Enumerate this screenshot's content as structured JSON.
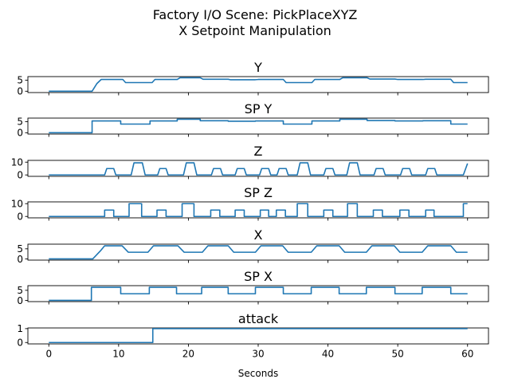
{
  "chart_data": {
    "type": "line",
    "title": [
      "Factory I/O Scene: PickPlaceXYZ",
      "X Setpoint Manipulation"
    ],
    "xlabel": "Seconds",
    "xlim": [
      -3,
      63
    ],
    "xticks": [
      0,
      10,
      20,
      30,
      40,
      50,
      60
    ],
    "line_color": "#1f77b4",
    "grid": false,
    "legend": "none",
    "panels": [
      {
        "title": "Y",
        "ylim": [
          -0.6,
          6.6
        ],
        "yticks": [
          0,
          5
        ],
        "points": [
          [
            0,
            0
          ],
          [
            6.2,
            0
          ],
          [
            6.9,
            3.5
          ],
          [
            7.5,
            5.3
          ],
          [
            10.6,
            5.3
          ],
          [
            11.0,
            3.9
          ],
          [
            14.8,
            3.9
          ],
          [
            15.2,
            5.3
          ],
          [
            18.4,
            5.3
          ],
          [
            18.8,
            6.1
          ],
          [
            21.7,
            6.1
          ],
          [
            22.1,
            5.4
          ],
          [
            25.7,
            5.4
          ],
          [
            26.0,
            5.2
          ],
          [
            29.6,
            5.2
          ],
          [
            30.0,
            5.3
          ],
          [
            33.6,
            5.3
          ],
          [
            34.0,
            3.9
          ],
          [
            37.7,
            3.9
          ],
          [
            38.1,
            5.3
          ],
          [
            41.7,
            5.3
          ],
          [
            42.1,
            6.1
          ],
          [
            45.6,
            6.1
          ],
          [
            46.0,
            5.5
          ],
          [
            49.6,
            5.5
          ],
          [
            50.0,
            5.3
          ],
          [
            53.6,
            5.3
          ],
          [
            54.0,
            5.4
          ],
          [
            57.6,
            5.4
          ],
          [
            58.0,
            3.9
          ],
          [
            60,
            3.9
          ]
        ]
      },
      {
        "title": "SP Y",
        "ylim": [
          -0.6,
          6.6
        ],
        "yticks": [
          0,
          5
        ],
        "points": [
          [
            0,
            0
          ],
          [
            6.2,
            0
          ],
          [
            6.2,
            5.3
          ],
          [
            10.3,
            5.3
          ],
          [
            10.3,
            3.9
          ],
          [
            14.5,
            3.9
          ],
          [
            14.5,
            5.3
          ],
          [
            18.4,
            5.3
          ],
          [
            18.4,
            6.1
          ],
          [
            21.7,
            6.1
          ],
          [
            21.7,
            5.4
          ],
          [
            25.7,
            5.4
          ],
          [
            25.7,
            5.2
          ],
          [
            29.6,
            5.2
          ],
          [
            29.6,
            5.3
          ],
          [
            33.6,
            5.3
          ],
          [
            33.6,
            3.9
          ],
          [
            37.7,
            3.9
          ],
          [
            37.7,
            5.3
          ],
          [
            41.7,
            5.3
          ],
          [
            41.7,
            6.1
          ],
          [
            45.6,
            6.1
          ],
          [
            45.6,
            5.5
          ],
          [
            49.6,
            5.5
          ],
          [
            49.6,
            5.3
          ],
          [
            53.6,
            5.3
          ],
          [
            53.6,
            5.4
          ],
          [
            57.6,
            5.4
          ],
          [
            57.6,
            3.9
          ],
          [
            60,
            3.9
          ]
        ]
      },
      {
        "title": "Z",
        "ylim": [
          -1.1,
          11.4
        ],
        "yticks": [
          0,
          10
        ],
        "points": [
          [
            0,
            0
          ],
          [
            8,
            0
          ],
          [
            8.3,
            5
          ],
          [
            9.3,
            5
          ],
          [
            9.6,
            0
          ],
          [
            11.8,
            0
          ],
          [
            12.2,
            9.5
          ],
          [
            13.4,
            9.5
          ],
          [
            13.8,
            0
          ],
          [
            15.6,
            0
          ],
          [
            15.9,
            5
          ],
          [
            16.8,
            5
          ],
          [
            17.1,
            0
          ],
          [
            19.3,
            0
          ],
          [
            19.7,
            9.5
          ],
          [
            20.8,
            9.5
          ],
          [
            21.2,
            0
          ],
          [
            23.3,
            0
          ],
          [
            23.6,
            5
          ],
          [
            24.6,
            5
          ],
          [
            24.9,
            0
          ],
          [
            26.7,
            0
          ],
          [
            27.0,
            5
          ],
          [
            28.0,
            5
          ],
          [
            28.3,
            0
          ],
          [
            30.2,
            0
          ],
          [
            30.5,
            5
          ],
          [
            31.5,
            5
          ],
          [
            31.8,
            0
          ],
          [
            32.7,
            0
          ],
          [
            33.0,
            5
          ],
          [
            34.0,
            5
          ],
          [
            34.3,
            0
          ],
          [
            35.6,
            0
          ],
          [
            36.0,
            9.5
          ],
          [
            37.1,
            9.5
          ],
          [
            37.5,
            0
          ],
          [
            39.4,
            0
          ],
          [
            39.7,
            5
          ],
          [
            40.7,
            5
          ],
          [
            41.0,
            0
          ],
          [
            42.7,
            0
          ],
          [
            43.1,
            9.5
          ],
          [
            44.2,
            9.5
          ],
          [
            44.6,
            0
          ],
          [
            46.6,
            0
          ],
          [
            46.9,
            5
          ],
          [
            47.9,
            5
          ],
          [
            48.2,
            0
          ],
          [
            50.4,
            0
          ],
          [
            50.7,
            5
          ],
          [
            51.7,
            5
          ],
          [
            52.0,
            0
          ],
          [
            54.0,
            0
          ],
          [
            54.3,
            5
          ],
          [
            55.3,
            5
          ],
          [
            55.6,
            0
          ],
          [
            59.4,
            0
          ],
          [
            60,
            9
          ]
        ]
      },
      {
        "title": "SP Z",
        "ylim": [
          -1.1,
          11.4
        ],
        "yticks": [
          0,
          10
        ],
        "points": [
          [
            0,
            0
          ],
          [
            8,
            0
          ],
          [
            8,
            5
          ],
          [
            9.3,
            5
          ],
          [
            9.3,
            0
          ],
          [
            11.5,
            0
          ],
          [
            11.5,
            10
          ],
          [
            13.3,
            10
          ],
          [
            13.3,
            0
          ],
          [
            15.5,
            0
          ],
          [
            15.5,
            5
          ],
          [
            16.8,
            5
          ],
          [
            16.8,
            0
          ],
          [
            19.1,
            0
          ],
          [
            19.1,
            10
          ],
          [
            20.8,
            10
          ],
          [
            20.8,
            0
          ],
          [
            23.2,
            0
          ],
          [
            23.2,
            5
          ],
          [
            24.5,
            5
          ],
          [
            24.5,
            0
          ],
          [
            26.7,
            0
          ],
          [
            26.7,
            5
          ],
          [
            28.0,
            5
          ],
          [
            28.0,
            0
          ],
          [
            30.3,
            0
          ],
          [
            30.3,
            5
          ],
          [
            31.5,
            5
          ],
          [
            31.5,
            0
          ],
          [
            32.6,
            0
          ],
          [
            32.6,
            5
          ],
          [
            33.9,
            5
          ],
          [
            33.9,
            0
          ],
          [
            35.6,
            0
          ],
          [
            35.6,
            10
          ],
          [
            37.1,
            10
          ],
          [
            37.1,
            0
          ],
          [
            39.4,
            0
          ],
          [
            39.4,
            5
          ],
          [
            40.7,
            5
          ],
          [
            40.7,
            0
          ],
          [
            42.8,
            0
          ],
          [
            42.8,
            10
          ],
          [
            44.2,
            10
          ],
          [
            44.2,
            0
          ],
          [
            46.5,
            0
          ],
          [
            46.5,
            5
          ],
          [
            47.8,
            5
          ],
          [
            47.8,
            0
          ],
          [
            50.3,
            0
          ],
          [
            50.3,
            5
          ],
          [
            51.6,
            5
          ],
          [
            51.6,
            0
          ],
          [
            54.0,
            0
          ],
          [
            54.0,
            5
          ],
          [
            55.2,
            5
          ],
          [
            55.2,
            0
          ],
          [
            59.4,
            0
          ],
          [
            59.4,
            10
          ],
          [
            60,
            10
          ]
        ]
      },
      {
        "title": "X",
        "ylim": [
          -0.6,
          7.3
        ],
        "yticks": [
          0,
          5
        ],
        "points": [
          [
            0,
            0
          ],
          [
            6.3,
            0
          ],
          [
            7.4,
            4
          ],
          [
            8,
            6.5
          ],
          [
            10.5,
            6.5
          ],
          [
            11.4,
            3.3
          ],
          [
            14.2,
            3.3
          ],
          [
            15.0,
            6.5
          ],
          [
            18.5,
            6.5
          ],
          [
            19.4,
            3.3
          ],
          [
            22.0,
            3.3
          ],
          [
            22.8,
            6.5
          ],
          [
            25.7,
            6.5
          ],
          [
            26.5,
            3.3
          ],
          [
            29.6,
            3.3
          ],
          [
            30.4,
            6.5
          ],
          [
            33.5,
            6.5
          ],
          [
            34.3,
            3.3
          ],
          [
            37.6,
            3.3
          ],
          [
            38.4,
            6.5
          ],
          [
            41.6,
            6.5
          ],
          [
            42.4,
            3.3
          ],
          [
            45.5,
            3.3
          ],
          [
            46.3,
            6.5
          ],
          [
            49.5,
            6.5
          ],
          [
            50.3,
            3.3
          ],
          [
            53.5,
            3.3
          ],
          [
            54.3,
            6.5
          ],
          [
            57.6,
            6.5
          ],
          [
            58.4,
            3.3
          ],
          [
            60,
            3.3
          ]
        ]
      },
      {
        "title": "SP X",
        "ylim": [
          -0.6,
          7.3
        ],
        "yticks": [
          0,
          5
        ],
        "points": [
          [
            0,
            0
          ],
          [
            6.1,
            0
          ],
          [
            6.1,
            6.5
          ],
          [
            10.3,
            6.5
          ],
          [
            10.3,
            3.3
          ],
          [
            14.4,
            3.3
          ],
          [
            14.4,
            6.5
          ],
          [
            18.3,
            6.5
          ],
          [
            18.3,
            3.3
          ],
          [
            21.9,
            3.3
          ],
          [
            21.9,
            6.5
          ],
          [
            25.7,
            6.5
          ],
          [
            25.7,
            3.3
          ],
          [
            29.6,
            3.3
          ],
          [
            29.6,
            6.5
          ],
          [
            33.6,
            6.5
          ],
          [
            33.6,
            3.3
          ],
          [
            37.6,
            3.3
          ],
          [
            37.6,
            6.5
          ],
          [
            41.6,
            6.5
          ],
          [
            41.6,
            3.3
          ],
          [
            45.5,
            3.3
          ],
          [
            45.5,
            6.5
          ],
          [
            49.6,
            6.5
          ],
          [
            49.6,
            3.3
          ],
          [
            53.5,
            3.3
          ],
          [
            53.5,
            6.5
          ],
          [
            57.6,
            6.5
          ],
          [
            57.6,
            3.3
          ],
          [
            60,
            3.3
          ]
        ]
      },
      {
        "title": "attack",
        "ylim": [
          -0.1,
          1.05
        ],
        "yticks": [
          0,
          1
        ],
        "points": [
          [
            0,
            0
          ],
          [
            14.9,
            0
          ],
          [
            14.9,
            1
          ],
          [
            60,
            1
          ]
        ]
      }
    ]
  }
}
